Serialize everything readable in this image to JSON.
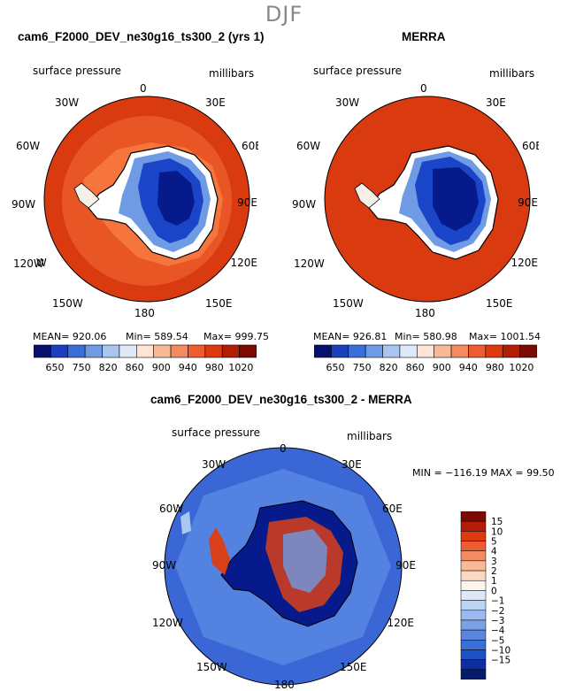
{
  "season": "DJF",
  "colors": {
    "ocean_top": "#d93a10",
    "ocean_top_ring": "#e85626",
    "model_halo": "#f5753d",
    "ice_dark": "#071a8c",
    "ice_mid": "#1a45c8",
    "ice_light": "#6f9ae4",
    "diff_ocean": "#3a66d6",
    "diff_ring": "#5f8fe6",
    "diff_pale": "#a8c8f2"
  },
  "panel_model": {
    "title": "cam6_F2000_DEV_ne30g16_ts300_2 (yrs 1)",
    "variable": "surface pressure",
    "units": "millibars",
    "mean_label": "MEAN= 920.06",
    "min_label": "Min= 589.54",
    "max_label": "Max= 999.75"
  },
  "panel_obs": {
    "title": "MERRA",
    "variable": "surface pressure",
    "units": "millibars",
    "mean_label": "MEAN= 926.81",
    "min_label": "Min= 580.98",
    "max_label": "Max= 1001.54"
  },
  "panel_diff": {
    "title": "cam6_F2000_DEV_ne30g16_ts300_2 - MERRA",
    "variable": "surface pressure",
    "units": "millibars",
    "minmax_label": "MIN = −116.19 MAX =  99.50"
  },
  "lon_labels": [
    "0",
    "30E",
    "60E",
    "90E",
    "120E",
    "150E",
    "180",
    "150W",
    "120W",
    "90W",
    "60W",
    "30W"
  ],
  "top_colorbar": {
    "colors": [
      "#08106e",
      "#1b3fbd",
      "#3b6fd8",
      "#6f9ae4",
      "#a9c6f0",
      "#dde9f8",
      "#fde4d4",
      "#f9b896",
      "#f48a60",
      "#ee5d32",
      "#dd3a12",
      "#b01e08",
      "#7c0a02"
    ],
    "labels": [
      "650",
      "750",
      "820",
      "860",
      "900",
      "940",
      "980",
      "1020"
    ],
    "labels_b": [
      "650",
      "750",
      "820",
      "860",
      "900",
      "940",
      "980",
      "1020"
    ]
  },
  "diff_colorbar": {
    "colors": [
      "#7c0a02",
      "#b01e08",
      "#dd3a12",
      "#ee5d32",
      "#f48a60",
      "#f9b896",
      "#fbd8c0",
      "#fff4ec",
      "#dde9f8",
      "#bcd3f3",
      "#9ab9ee",
      "#7aa0e6",
      "#5a86de",
      "#3b6fd8",
      "#1f51c4",
      "#0c2f9d",
      "#061b6c"
    ],
    "labels": [
      "15",
      "10",
      "5",
      "4",
      "3",
      "2",
      "1",
      "0",
      "−1",
      "−2",
      "−3",
      "−4",
      "−5",
      "−10",
      "−15"
    ]
  }
}
